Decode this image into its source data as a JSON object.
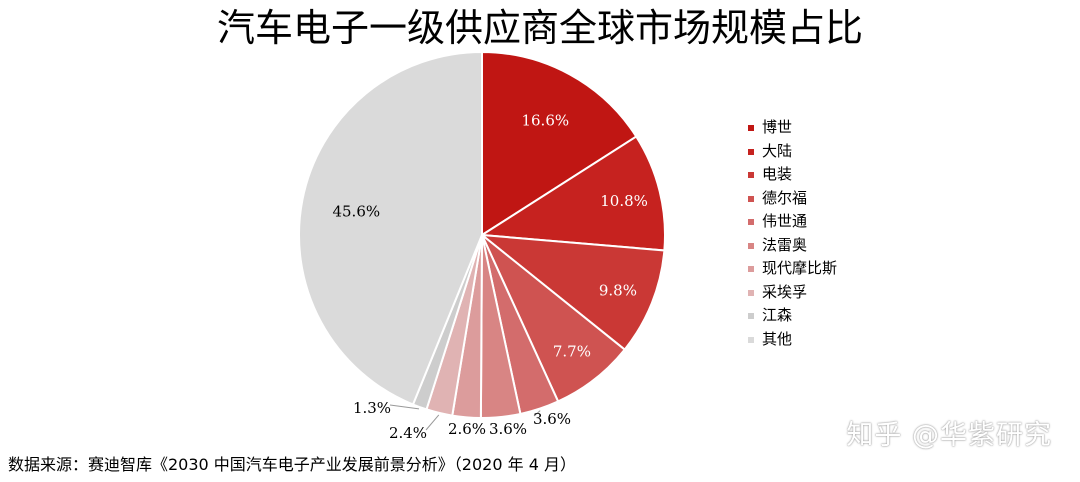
{
  "chart_data": {
    "type": "pie",
    "title": "汽车电子一级供应商全球市场规模占比",
    "legend_position": "right",
    "categories": [
      "博世",
      "大陆",
      "电装",
      "德尔福",
      "伟世通",
      "法雷奥",
      "现代摩比斯",
      "采埃孚",
      "江森",
      "其他"
    ],
    "values": [
      16.6,
      10.8,
      9.8,
      7.7,
      3.6,
      3.6,
      2.6,
      2.4,
      1.3,
      45.6
    ],
    "labels": [
      "16.6%",
      "10.8%",
      "9.8%",
      "7.7%",
      "3.6%",
      "3.6%",
      "2.6%",
      "2.4%",
      "1.3%",
      "45.6%"
    ],
    "colors": [
      "#c01613",
      "#c6221f",
      "#ca3835",
      "#cf5351",
      "#d36c6c",
      "#d88584",
      "#dc9c9c",
      "#e0b3b3",
      "#cdcdcd",
      "#dadada"
    ]
  },
  "source": "数据来源：赛迪智库《2030 中国汽车电子产业发展前景分析》（2020 年 4 月）",
  "watermark": "知乎 @华紫研究"
}
